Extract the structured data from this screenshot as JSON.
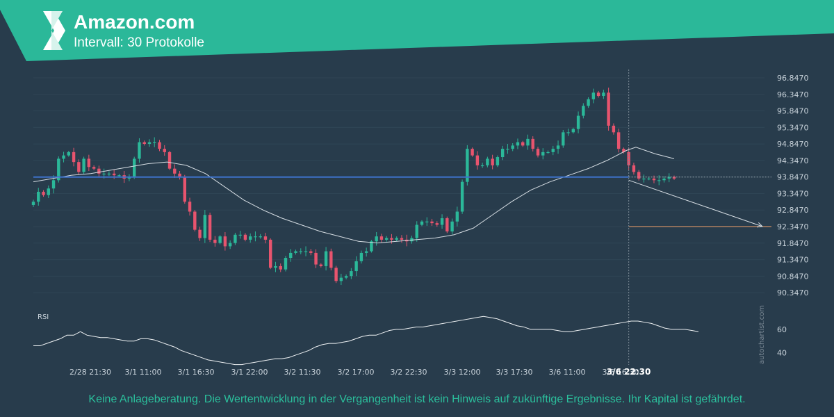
{
  "header": {
    "title": "Amazon.com",
    "subtitle": "Intervall: 30 Protokolle",
    "accent_color": "#2bb899",
    "logo_icon": "autochartist-logo-icon"
  },
  "disclaimer": "Keine Anlageberatung. Die Wertentwicklung in der Vergangenheit ist kein Hinweis auf zukünftige Ergebnisse. Ihr Kapital ist gefährdet.",
  "watermark": "autochartist.com",
  "chart_data": {
    "type": "candlestick",
    "y_ticks": [
      "96.8470",
      "96.3470",
      "95.8470",
      "95.3470",
      "94.8470",
      "94.3470",
      "93.8470",
      "93.3470",
      "92.8470",
      "92.3470",
      "91.8470",
      "91.3470",
      "90.8470",
      "90.3470"
    ],
    "ylim": [
      89.95,
      97.1
    ],
    "x_ticks": [
      "2/28 21:30",
      "3/1 11:00",
      "3/1 16:30",
      "3/1 22:00",
      "3/2 11:30",
      "3/2 17:00",
      "3/2 22:30",
      "3/3 12:00",
      "3/3 17:30",
      "3/6 11:00",
      "3/6 16:30",
      "3/6 22:30"
    ],
    "current_label": "3/6 22:30",
    "closes": [
      93.1,
      93.4,
      93.3,
      93.5,
      93.75,
      94.4,
      94.5,
      94.6,
      94.3,
      94.0,
      94.4,
      94.15,
      94.1,
      93.95,
      93.95,
      93.95,
      93.9,
      93.9,
      93.8,
      93.85,
      94.4,
      94.9,
      94.85,
      94.9,
      94.9,
      94.7,
      94.6,
      94.1,
      93.95,
      93.85,
      93.1,
      92.8,
      92.25,
      92.0,
      92.7,
      91.95,
      91.85,
      92.05,
      91.75,
      91.85,
      92.1,
      92.1,
      91.95,
      92.05,
      92.05,
      92.05,
      91.95,
      91.1,
      91.15,
      91.05,
      91.4,
      91.55,
      91.6,
      91.6,
      91.6,
      91.55,
      91.2,
      91.15,
      91.6,
      91.1,
      90.7,
      90.8,
      90.85,
      91.0,
      91.3,
      91.55,
      91.6,
      91.9,
      92.05,
      91.95,
      92.0,
      91.95,
      92.0,
      91.95,
      91.9,
      92.0,
      92.4,
      92.5,
      92.5,
      92.45,
      92.4,
      92.6,
      92.2,
      92.5,
      92.8,
      93.7,
      94.7,
      94.5,
      94.2,
      94.2,
      94.4,
      94.2,
      94.45,
      94.7,
      94.7,
      94.8,
      94.9,
      94.8,
      95.0,
      94.7,
      94.5,
      94.6,
      94.6,
      94.7,
      94.8,
      95.2,
      95.2,
      95.3,
      95.7,
      96.0,
      96.2,
      96.4,
      96.3,
      96.4,
      95.4,
      95.2,
      94.7,
      94.6,
      94.2,
      94.0,
      93.8,
      93.8,
      93.8,
      93.75,
      93.75,
      93.8,
      93.85,
      93.8
    ],
    "moving_average": [
      [
        0,
        93.7
      ],
      [
        10,
        93.8
      ],
      [
        20,
        93.9
      ],
      [
        30,
        93.95
      ],
      [
        40,
        94.05
      ],
      [
        50,
        94.15
      ],
      [
        60,
        94.25
      ],
      [
        70,
        94.3
      ],
      [
        80,
        94.2
      ],
      [
        90,
        93.95
      ],
      [
        100,
        93.55
      ],
      [
        110,
        93.15
      ],
      [
        120,
        92.85
      ],
      [
        130,
        92.6
      ],
      [
        140,
        92.4
      ],
      [
        150,
        92.2
      ],
      [
        160,
        92.05
      ],
      [
        170,
        91.9
      ],
      [
        180,
        91.85
      ],
      [
        190,
        91.9
      ],
      [
        200,
        91.95
      ],
      [
        210,
        92.0
      ],
      [
        220,
        92.1
      ],
      [
        230,
        92.3
      ],
      [
        240,
        92.7
      ],
      [
        250,
        93.1
      ],
      [
        260,
        93.45
      ],
      [
        270,
        93.7
      ],
      [
        280,
        93.9
      ],
      [
        290,
        94.1
      ],
      [
        300,
        94.35
      ],
      [
        310,
        94.65
      ],
      [
        315,
        94.75
      ],
      [
        325,
        94.55
      ],
      [
        335,
        94.4
      ]
    ],
    "support_level": 93.847,
    "target_level": 92.347,
    "forecast_line": [
      [
        93.75,
        92.35
      ]
    ],
    "rsi": {
      "label": "RSI",
      "y_ticks": [
        "60",
        "40"
      ],
      "ylim": [
        28,
        80
      ],
      "values": [
        46,
        46,
        48,
        50,
        52,
        55,
        55,
        58,
        55,
        54,
        53,
        53,
        52,
        51,
        50,
        50,
        52,
        52,
        51,
        49,
        47,
        45,
        42,
        40,
        38,
        36,
        34,
        33,
        32,
        31,
        30,
        30,
        31,
        32,
        33,
        34,
        35,
        35,
        36,
        38,
        40,
        42,
        45,
        47,
        48,
        48,
        49,
        50,
        52,
        54,
        55,
        55,
        57,
        59,
        60,
        60,
        61,
        62,
        62,
        63,
        64,
        65,
        66,
        67,
        68,
        69,
        70,
        71,
        70,
        69,
        67,
        65,
        63,
        62,
        60,
        60,
        60,
        60,
        59,
        58,
        58,
        59,
        60,
        61,
        62,
        63,
        64,
        65,
        66,
        67,
        67,
        66,
        65,
        63,
        61,
        60,
        60,
        60,
        59,
        58
      ]
    }
  }
}
